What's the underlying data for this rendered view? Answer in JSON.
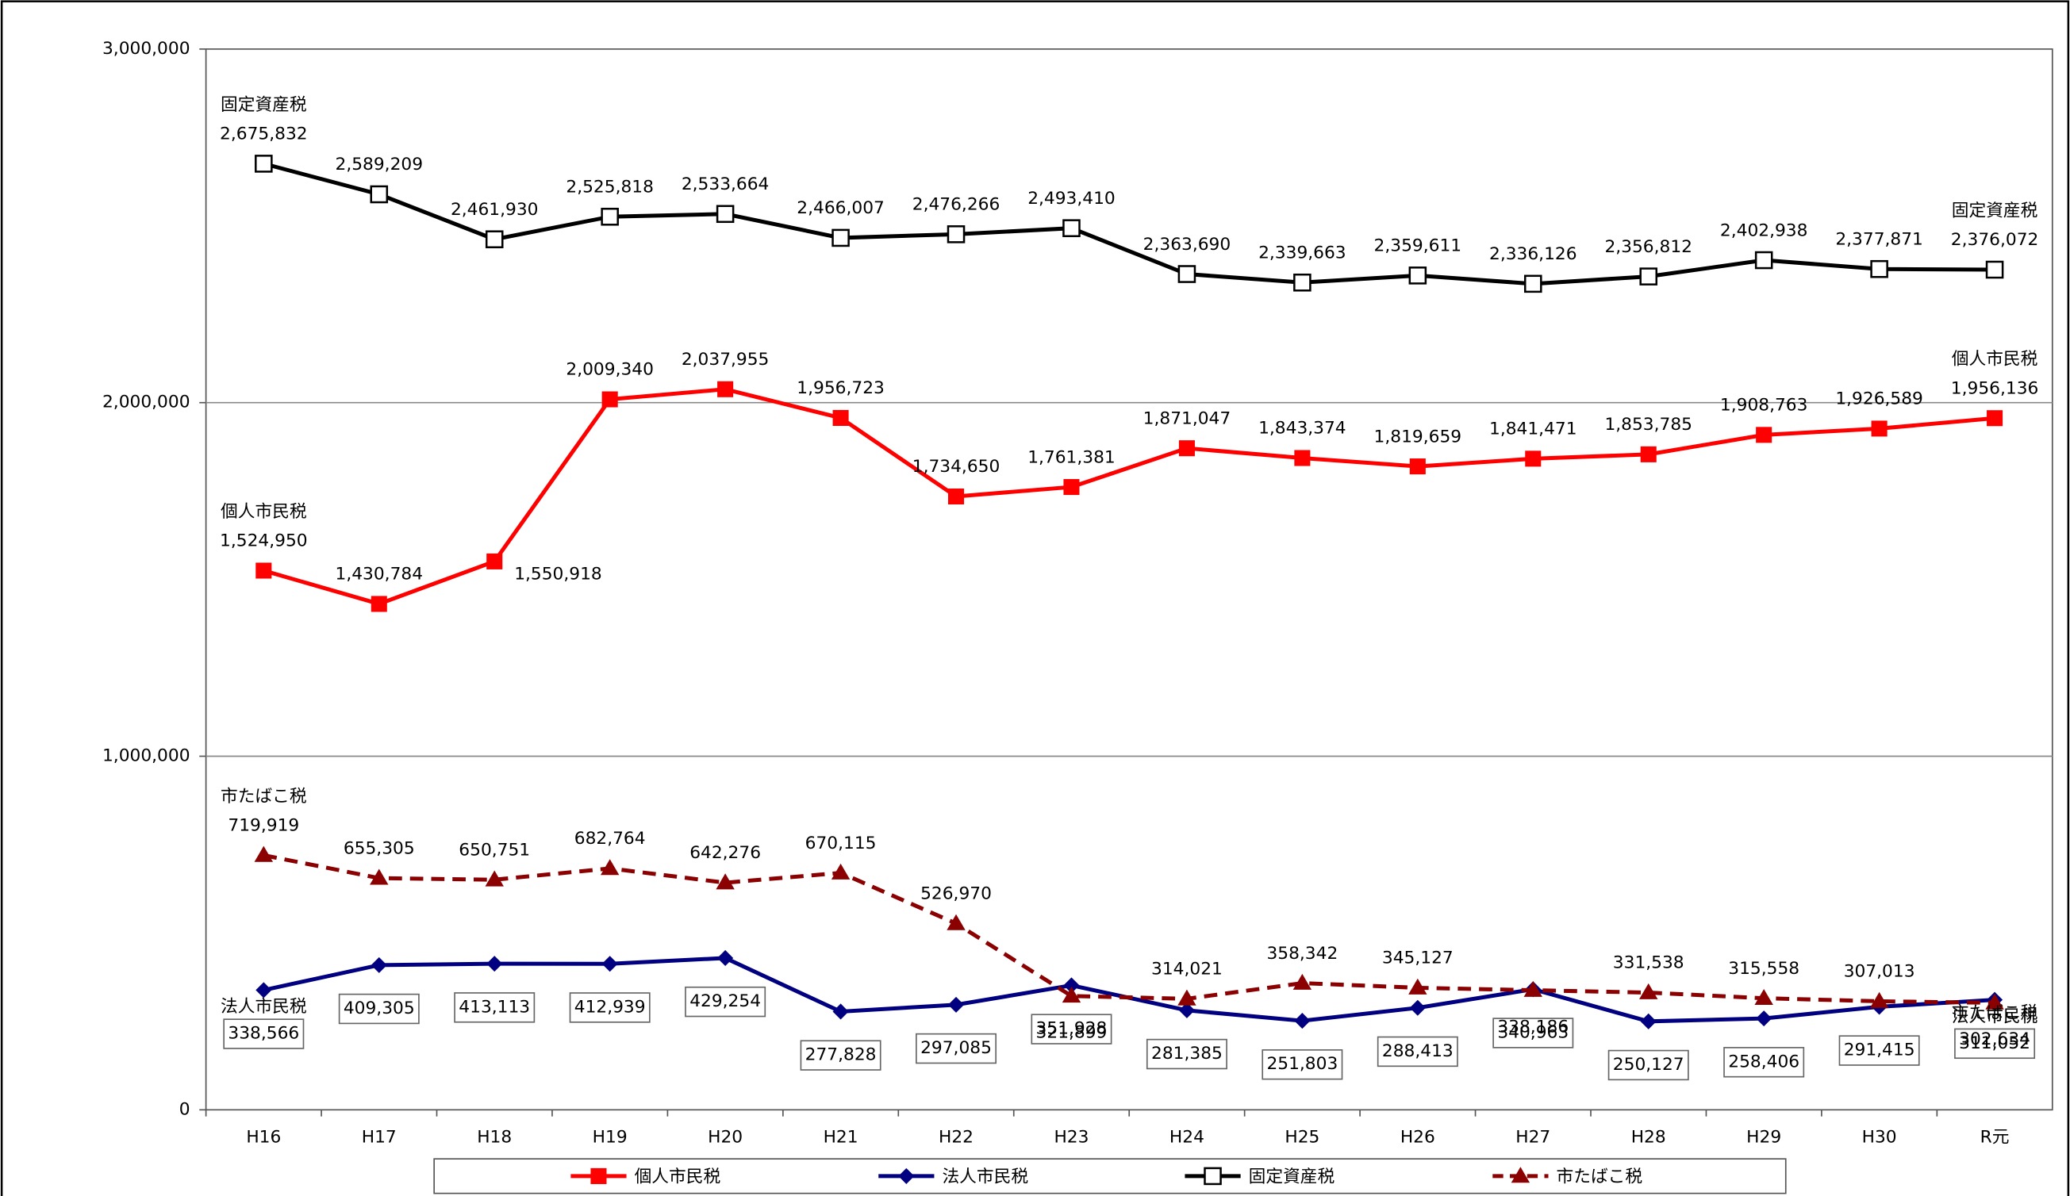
{
  "chart_data": {
    "type": "line",
    "categories": [
      "H16",
      "H17",
      "H18",
      "H19",
      "H20",
      "H21",
      "H22",
      "H23",
      "H24",
      "H25",
      "H26",
      "H27",
      "H28",
      "H29",
      "H30",
      "R元"
    ],
    "ylim": [
      0,
      3000000
    ],
    "yticks": [
      0,
      {
        "value": 1000000,
        "label": "1,000,000"
      },
      {
        "value": 2000000,
        "label": "2,000,000"
      },
      {
        "value": 3000000,
        "label": "3,000,000"
      }
    ],
    "grid": true,
    "legend": "bottom",
    "series": [
      {
        "name": "個人市民税",
        "color": "#ff0000",
        "marker": "square",
        "dash": false,
        "values": [
          1524950,
          1430784,
          1550918,
          2009340,
          2037955,
          1956723,
          1734650,
          1761381,
          1871047,
          1843374,
          1819659,
          1841471,
          1853785,
          1908763,
          1926589,
          1956136
        ],
        "value_labels": [
          "1,524,950",
          "1,430,784",
          "1,550,918",
          "2,009,340",
          "2,037,955",
          "1,956,723",
          "1,734,650",
          "1,761,381",
          "1,871,047",
          "1,843,374",
          "1,819,659",
          "1,841,471",
          "1,853,785",
          "1,908,763",
          "1,926,589",
          "1,956,136"
        ]
      },
      {
        "name": "法人市民税",
        "color": "#000080",
        "marker": "diamond",
        "dash": false,
        "values": [
          338566,
          409305,
          413113,
          412939,
          429254,
          277828,
          297085,
          351928,
          281385,
          251803,
          288413,
          340963,
          250127,
          258406,
          291415,
          311052
        ],
        "value_labels": [
          "338,566",
          "409,305",
          "413,113",
          "412,939",
          "429,254",
          "277,828",
          "297,085",
          "351,928",
          "281,385",
          "251,803",
          "288,413",
          "340,963",
          "250,127",
          "258,406",
          "291,415",
          "311,052"
        ]
      },
      {
        "name": "固定資産税",
        "color": "#000000",
        "marker": "open-square",
        "dash": false,
        "values": [
          2675832,
          2589209,
          2461930,
          2525818,
          2533664,
          2466007,
          2476266,
          2493410,
          2363690,
          2339663,
          2359611,
          2336126,
          2356812,
          2402938,
          2377871,
          2376072
        ],
        "value_labels": [
          "2,675,832",
          "2,589,209",
          "2,461,930",
          "2,525,818",
          "2,533,664",
          "2,466,007",
          "2,476,266",
          "2,493,410",
          "2,363,690",
          "2,339,663",
          "2,359,611",
          "2,336,126",
          "2,356,812",
          "2,402,938",
          "2,377,871",
          "2,376,072"
        ]
      },
      {
        "name": "市たばこ税",
        "color": "#8b0000",
        "marker": "triangle",
        "dash": true,
        "values": [
          719919,
          655305,
          650751,
          682764,
          642276,
          670115,
          526970,
          321899,
          314021,
          358342,
          345127,
          338186,
          331538,
          315558,
          307013,
          302634
        ],
        "value_labels": [
          "719,919",
          "655,305",
          "650,751",
          "682,764",
          "642,276",
          "670,115",
          "526,970",
          "321,899",
          "314,021",
          "358,342",
          "345,127",
          "338,186",
          "331,538",
          "315,558",
          "307,013",
          "302,634"
        ]
      }
    ]
  }
}
